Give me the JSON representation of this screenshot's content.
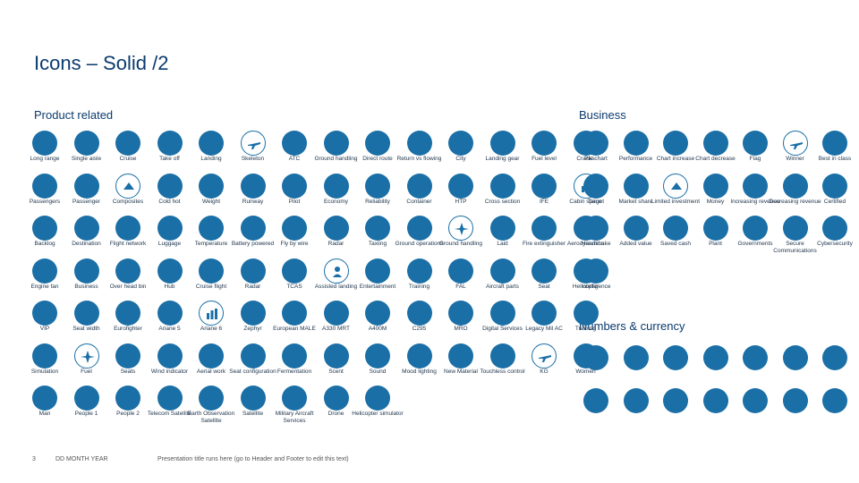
{
  "page": {
    "title": "Icons – Solid /2"
  },
  "sections": {
    "product": "Product related",
    "business": "Business",
    "numbers": "Numbers & currency"
  },
  "product_rows": [
    [
      "Long range",
      "Single aisle",
      "Cruise",
      "Take off",
      "Landing",
      "Skeleton",
      "ATC",
      "Ground handling",
      "Direct route",
      "Return vs flowing",
      "City",
      "Landing gear",
      "Fuel level",
      "Cracks"
    ],
    [
      "Passengers",
      "Passenger",
      "Composites",
      "Cold hot",
      "Weight",
      "Runway",
      "Pilot",
      "Economy",
      "Reliability",
      "Container",
      "HTP",
      "Cross section",
      "IFE",
      "Cabin space"
    ],
    [
      "Backlog",
      "Destination",
      "Flight network",
      "Luggage",
      "Temperature",
      "Battery powered",
      "Fly by wire",
      "Radar",
      "Taxiing",
      "Ground operations",
      "Ground handling",
      "Laid",
      "Fire extinguisher",
      "Aerodynamics"
    ],
    [
      "Engine fan",
      "Business",
      "Over head bin",
      "Hub",
      "Cruise flight",
      "Radar",
      "TCAS",
      "Assisted landing",
      "Entertainment",
      "Training",
      "FAL",
      "Aircraft parts",
      "Seat",
      "Helicopter"
    ],
    [
      "VIP",
      "Seat width",
      "Eurofighter",
      "Ariane 5",
      "Ariane 6",
      "Zephyr",
      "European MALE",
      "A330 MRT",
      "A400M",
      "C295",
      "MRO",
      "Digital Services",
      "Legacy Mil AC",
      "Training"
    ],
    [
      "Simulation",
      "Fuel",
      "Seats",
      "Wind indicator",
      "Aerial work",
      "Seat configuration",
      "Fermentation",
      "Scent",
      "Sound",
      "Mood lighting",
      "New Material",
      "Touchless control",
      "KG",
      "Women"
    ],
    [
      "Man",
      "People 1",
      "People 2",
      "Telecom Satellite",
      "Earth Observation Satellite",
      "Satellite",
      "Military Aircraft Services",
      "Drone",
      "Helicopter simulator"
    ]
  ],
  "business_rows": [
    [
      "Pie chart",
      "Performance",
      "Chart increase",
      "Chart decrease",
      "Flag",
      "Winner",
      "Best in class"
    ],
    [
      "Target",
      "Market share",
      "Limited investment",
      "Money",
      "Increasing revenue",
      "Decreasing revenue",
      "Certified"
    ],
    [
      "Handshake",
      "Added value",
      "Saved cash",
      "Plant",
      "Governments",
      "Secure Communications",
      "Cybersecurity"
    ],
    [
      "Intelligence"
    ]
  ],
  "numbers_rows": [
    [
      "",
      "",
      "",
      "",
      "",
      "",
      ""
    ],
    [
      "",
      "",
      "",
      "",
      "",
      "",
      ""
    ]
  ],
  "footer": {
    "page_number": "3",
    "date": "DD MONTH YEAR",
    "note": "Presentation title runs here (go to Header and Footer to edit this text)"
  },
  "icons": {
    "product": [
      "airplane-icon",
      "snowflake-icon",
      "chart-icon",
      "anchor-icon",
      "aircraft-icon",
      "building-icon",
      "person-icon",
      "helicopter-icon",
      "gear-icon",
      "globe-icon",
      "star-icon",
      "home-icon"
    ],
    "business": [
      "handshake-icon",
      "certified-icon",
      "globe-icon"
    ]
  },
  "colors": {
    "primary": "#1a6fa6",
    "text": "#0b3b6e"
  }
}
